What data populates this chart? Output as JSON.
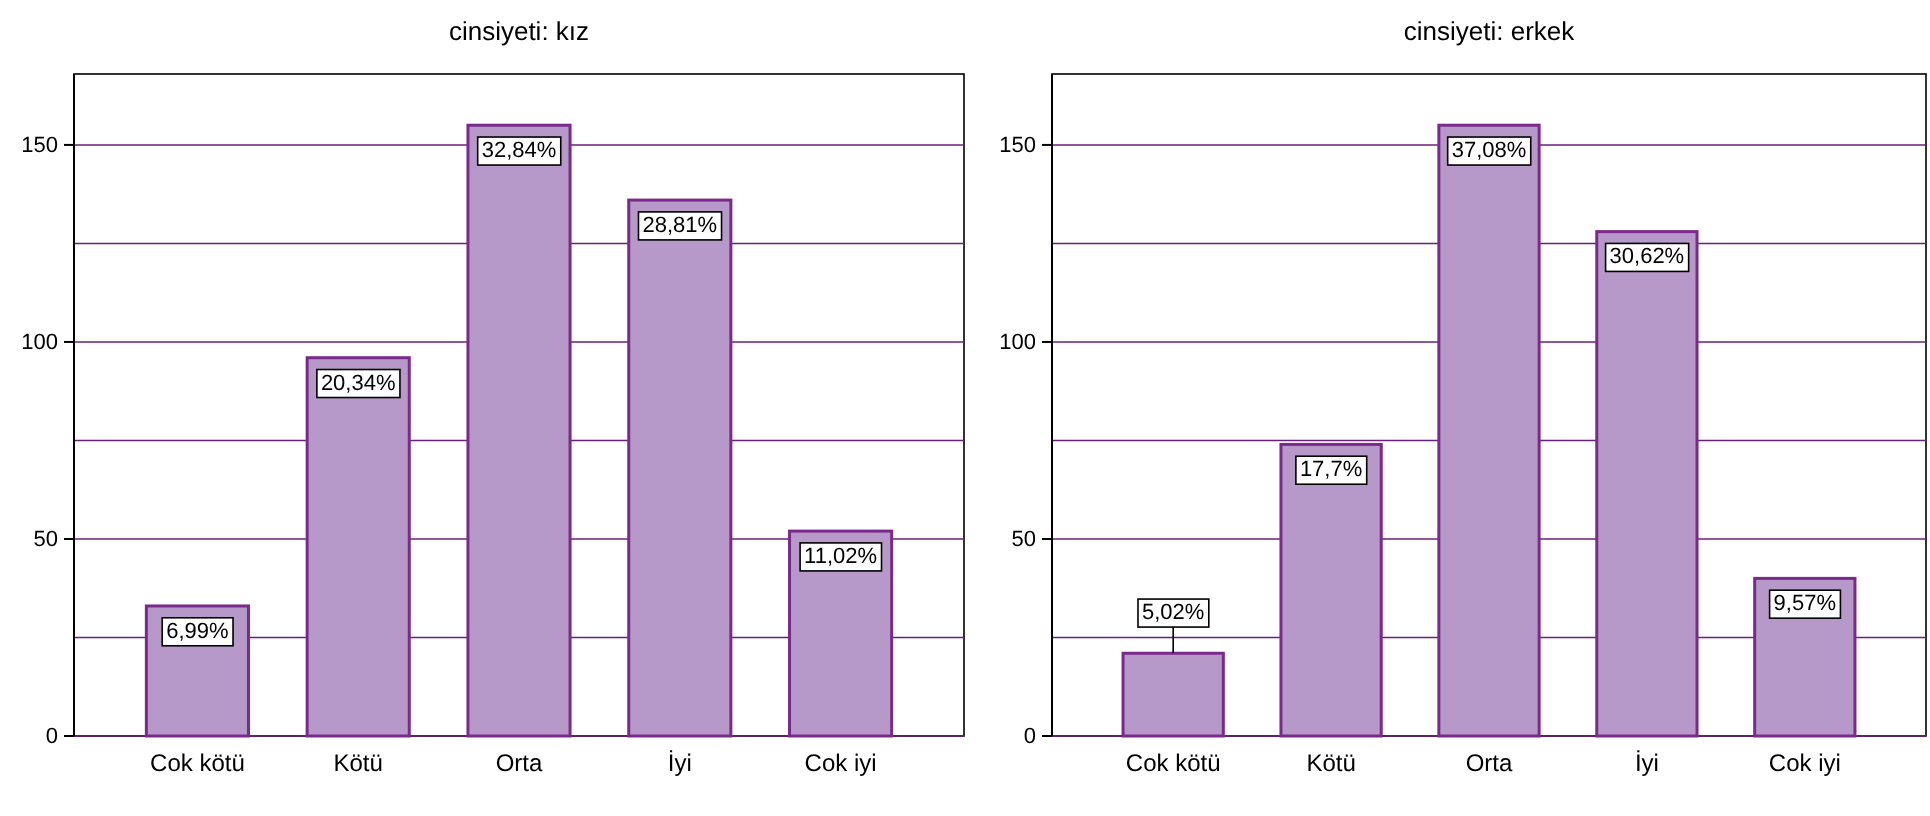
{
  "chart_data": [
    {
      "type": "bar",
      "title": "cinsiyeti: kız",
      "categories": [
        "Cok kötü",
        "Kötü",
        "Orta",
        "İyi",
        "Cok iyi"
      ],
      "values": [
        33,
        96,
        155,
        136,
        52
      ],
      "color": "#b799c9",
      "ylim": [
        0,
        168
      ],
      "yticks": [
        0,
        {
          "value": 25,
          "label": null
        },
        50,
        {
          "value": 75,
          "label": null
        },
        100,
        {
          "value": 125,
          "label": null
        },
        150
      ],
      "grid": "y",
      "annotations": [
        {
          "text": "6,99%",
          "x": "Cok kötü",
          "y": 33
        },
        {
          "text": "20,34%",
          "x": "Kötü",
          "y": 96
        },
        {
          "text": "32,84%",
          "x": "Orta",
          "y": 155
        },
        {
          "text": "28,81%",
          "x": "İyi",
          "y": 136
        },
        {
          "text": "11,02%",
          "x": "Cok iyi",
          "y": 52
        }
      ]
    },
    {
      "type": "bar",
      "title": "cinsiyeti: erkek",
      "categories": [
        "Cok kötü",
        "Kötü",
        "Orta",
        "İyi",
        "Cok iyi"
      ],
      "values": [
        21,
        74,
        155,
        128,
        40
      ],
      "color": "#b799c9",
      "ylim": [
        0,
        168
      ],
      "yticks": [
        0,
        {
          "value": 25,
          "label": null
        },
        50,
        {
          "value": 75,
          "label": null
        },
        100,
        {
          "value": 125,
          "label": null
        },
        150
      ],
      "grid": "y",
      "annotations": [
        {
          "text": "5,02%",
          "x": "Cok kötü",
          "y": 21
        },
        {
          "text": "17,7%",
          "x": "Kötü",
          "y": 74
        },
        {
          "text": "37,08%",
          "x": "Orta",
          "y": 155
        },
        {
          "text": "30,62%",
          "x": "İyi",
          "y": 128
        },
        {
          "text": "9,57%",
          "x": "Cok iyi",
          "y": 40
        }
      ]
    }
  ]
}
